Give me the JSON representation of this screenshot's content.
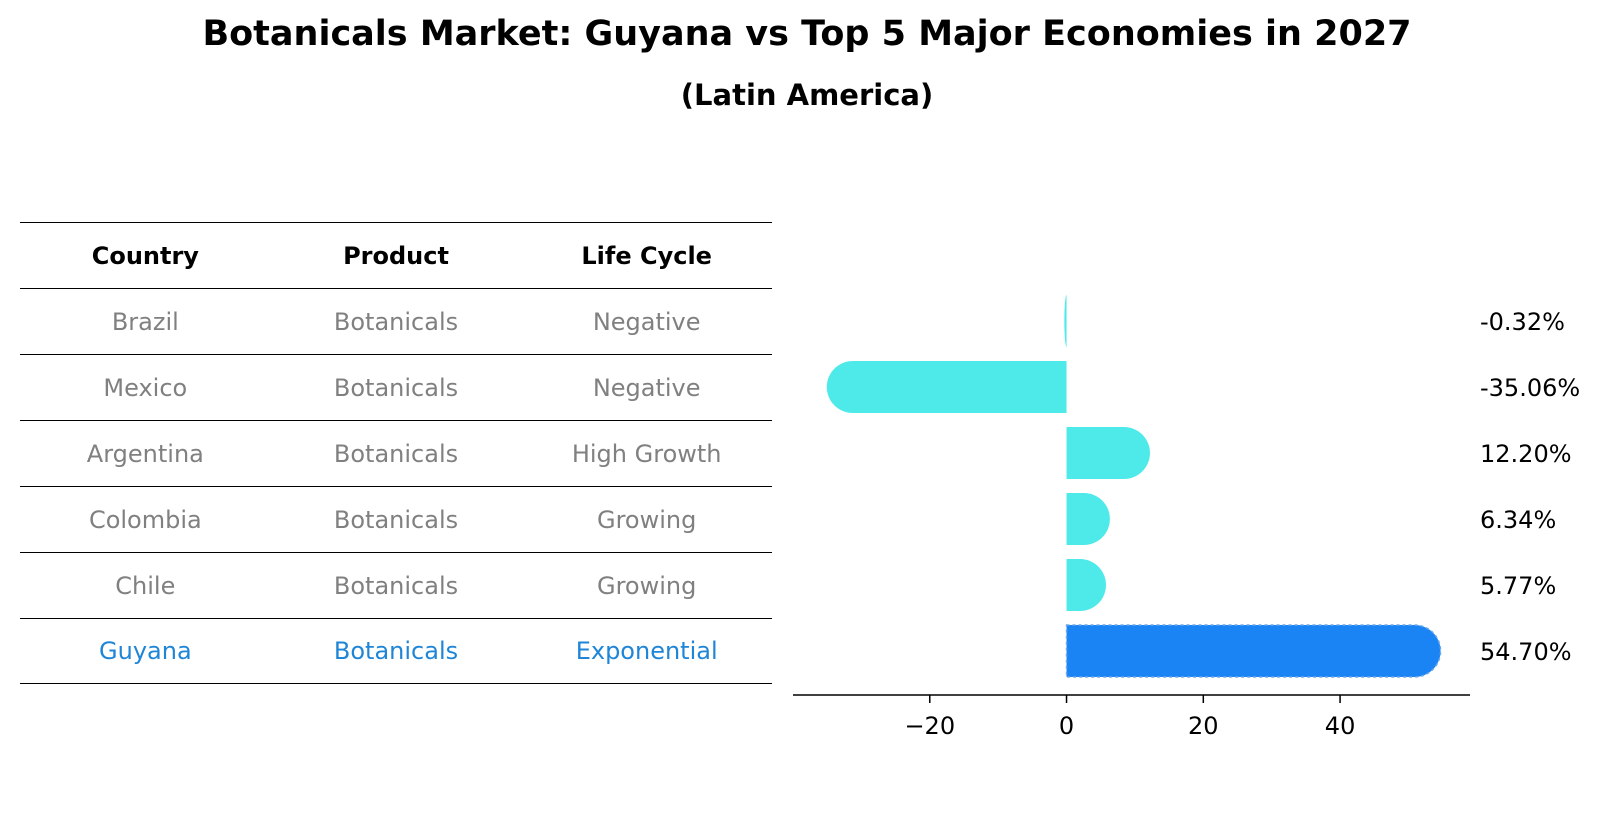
{
  "title": "Botanicals Market: Guyana vs Top 5 Major Economies in 2027",
  "subtitle": "(Latin America)",
  "table": {
    "headers": [
      "Country",
      "Product",
      "Life Cycle"
    ],
    "rows": [
      {
        "country": "Brazil",
        "product": "Botanicals",
        "life_cycle": "Negative"
      },
      {
        "country": "Mexico",
        "product": "Botanicals",
        "life_cycle": "Negative"
      },
      {
        "country": "Argentina",
        "product": "Botanicals",
        "life_cycle": "High Growth"
      },
      {
        "country": "Colombia",
        "product": "Botanicals",
        "life_cycle": "Growing"
      },
      {
        "country": "Chile",
        "product": "Botanicals",
        "life_cycle": "Growing"
      },
      {
        "country": "Guyana",
        "product": "Botanicals",
        "life_cycle": "Exponential"
      }
    ]
  },
  "chart_data": {
    "type": "bar",
    "orientation": "horizontal",
    "categories": [
      "Brazil",
      "Mexico",
      "Argentina",
      "Colombia",
      "Chile",
      "Guyana"
    ],
    "values": [
      -0.32,
      -35.06,
      12.2,
      6.34,
      5.77,
      54.7
    ],
    "value_labels": [
      "-0.32%",
      "-35.06%",
      "12.20%",
      "6.34%",
      "5.77%",
      "54.70%"
    ],
    "highlight": "Guyana",
    "xlim": [
      -40,
      59
    ],
    "xticks": [
      -20,
      0,
      20,
      40
    ],
    "xtick_labels": [
      "−20",
      "0",
      "20",
      "40"
    ],
    "colors": {
      "default": "#4eeaea",
      "highlight": "#1a84f5"
    },
    "grid": false
  }
}
